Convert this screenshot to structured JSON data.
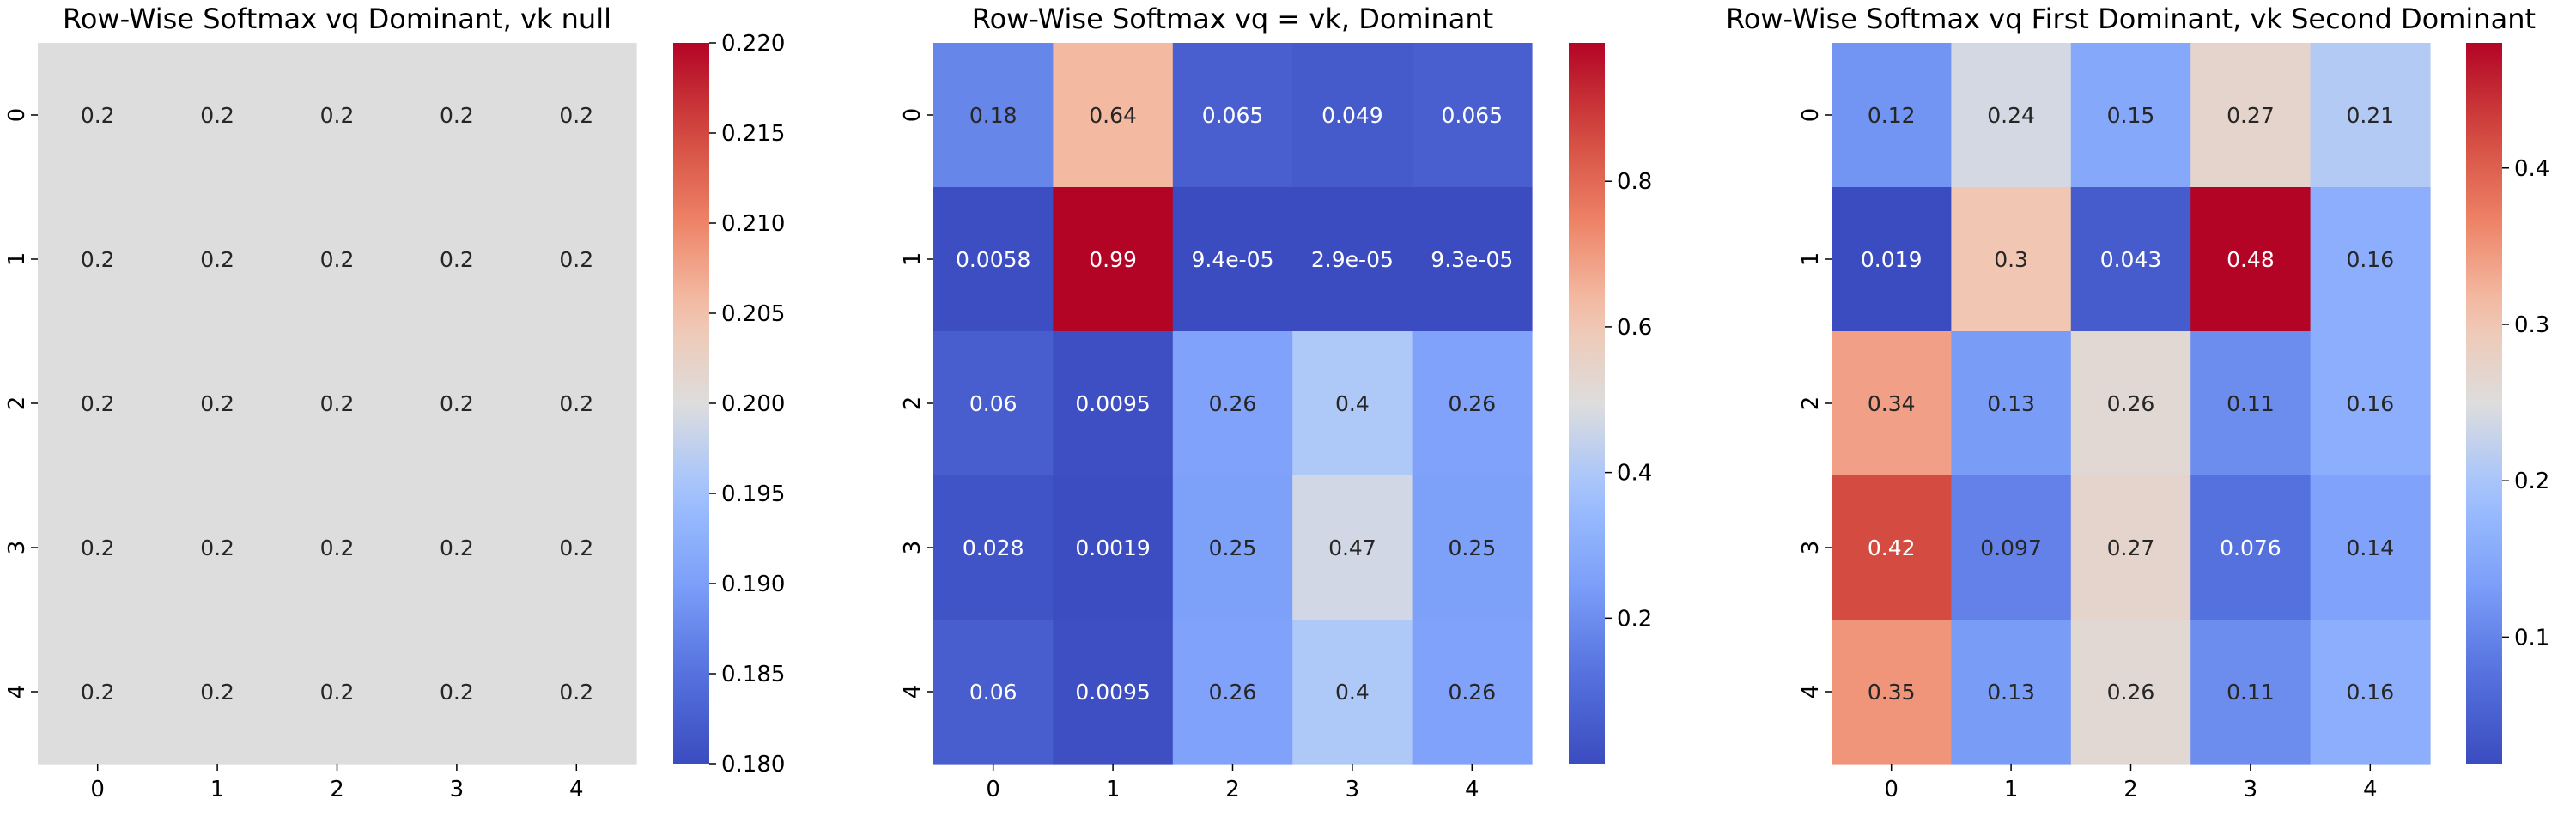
{
  "chart_data": [
    {
      "type": "heatmap",
      "title": "Row-Wise Softmax vq Dominant, vk null",
      "x_tick_labels": [
        "0",
        "1",
        "2",
        "3",
        "4"
      ],
      "y_tick_labels": [
        "0",
        "1",
        "2",
        "3",
        "4"
      ],
      "values": [
        [
          0.2,
          0.2,
          0.2,
          0.2,
          0.2
        ],
        [
          0.2,
          0.2,
          0.2,
          0.2,
          0.2
        ],
        [
          0.2,
          0.2,
          0.2,
          0.2,
          0.2
        ],
        [
          0.2,
          0.2,
          0.2,
          0.2,
          0.2
        ],
        [
          0.2,
          0.2,
          0.2,
          0.2,
          0.2
        ]
      ],
      "annotations": [
        [
          "0.2",
          "0.2",
          "0.2",
          "0.2",
          "0.2"
        ],
        [
          "0.2",
          "0.2",
          "0.2",
          "0.2",
          "0.2"
        ],
        [
          "0.2",
          "0.2",
          "0.2",
          "0.2",
          "0.2"
        ],
        [
          "0.2",
          "0.2",
          "0.2",
          "0.2",
          "0.2"
        ],
        [
          "0.2",
          "0.2",
          "0.2",
          "0.2",
          "0.2"
        ]
      ],
      "colormap": "coolwarm",
      "colorbar": {
        "vmin": 0.18,
        "vmax": 0.22,
        "ticks": [
          0.18,
          0.185,
          0.19,
          0.195,
          0.2,
          0.205,
          0.21,
          0.215,
          0.22
        ],
        "tick_labels": [
          "0.180",
          "0.185",
          "0.190",
          "0.195",
          "0.200",
          "0.205",
          "0.210",
          "0.215",
          "0.220"
        ]
      }
    },
    {
      "type": "heatmap",
      "title": "Row-Wise Softmax vq = vk, Dominant",
      "x_tick_labels": [
        "0",
        "1",
        "2",
        "3",
        "4"
      ],
      "y_tick_labels": [
        "0",
        "1",
        "2",
        "3",
        "4"
      ],
      "values": [
        [
          0.18,
          0.64,
          0.065,
          0.049,
          0.065
        ],
        [
          0.0058,
          0.99,
          9.4e-05,
          2.9e-05,
          9.3e-05
        ],
        [
          0.06,
          0.0095,
          0.26,
          0.4,
          0.26
        ],
        [
          0.028,
          0.0019,
          0.25,
          0.47,
          0.25
        ],
        [
          0.06,
          0.0095,
          0.26,
          0.4,
          0.26
        ]
      ],
      "annotations": [
        [
          "0.18",
          "0.64",
          "0.065",
          "0.049",
          "0.065"
        ],
        [
          "0.0058",
          "0.99",
          "9.4e-05",
          "2.9e-05",
          "9.3e-05"
        ],
        [
          "0.06",
          "0.0095",
          "0.26",
          "0.4",
          "0.26"
        ],
        [
          "0.028",
          "0.0019",
          "0.25",
          "0.47",
          "0.25"
        ],
        [
          "0.06",
          "0.0095",
          "0.26",
          "0.4",
          "0.26"
        ]
      ],
      "colormap": "coolwarm",
      "colorbar": {
        "vmin": 2.9e-05,
        "vmax": 0.99,
        "ticks": [
          0.2,
          0.4,
          0.6,
          0.8
        ],
        "tick_labels": [
          "0.2",
          "0.4",
          "0.6",
          "0.8"
        ]
      }
    },
    {
      "type": "heatmap",
      "title": "Row-Wise Softmax vq First Dominant, vk Second Dominant",
      "x_tick_labels": [
        "0",
        "1",
        "2",
        "3",
        "4"
      ],
      "y_tick_labels": [
        "0",
        "1",
        "2",
        "3",
        "4"
      ],
      "values": [
        [
          0.12,
          0.24,
          0.15,
          0.27,
          0.21
        ],
        [
          0.019,
          0.3,
          0.043,
          0.48,
          0.16
        ],
        [
          0.34,
          0.13,
          0.26,
          0.11,
          0.16
        ],
        [
          0.42,
          0.097,
          0.27,
          0.076,
          0.14
        ],
        [
          0.35,
          0.13,
          0.26,
          0.11,
          0.16
        ]
      ],
      "annotations": [
        [
          "0.12",
          "0.24",
          "0.15",
          "0.27",
          "0.21"
        ],
        [
          "0.019",
          "0.3",
          "0.043",
          "0.48",
          "0.16"
        ],
        [
          "0.34",
          "0.13",
          "0.26",
          "0.11",
          "0.16"
        ],
        [
          "0.42",
          "0.097",
          "0.27",
          "0.076",
          "0.14"
        ],
        [
          "0.35",
          "0.13",
          "0.26",
          "0.11",
          "0.16"
        ]
      ],
      "colormap": "coolwarm",
      "colorbar": {
        "vmin": 0.019,
        "vmax": 0.48,
        "ticks": [
          0.1,
          0.2,
          0.3,
          0.4
        ],
        "tick_labels": [
          "0.1",
          "0.2",
          "0.3",
          "0.4"
        ]
      }
    }
  ]
}
